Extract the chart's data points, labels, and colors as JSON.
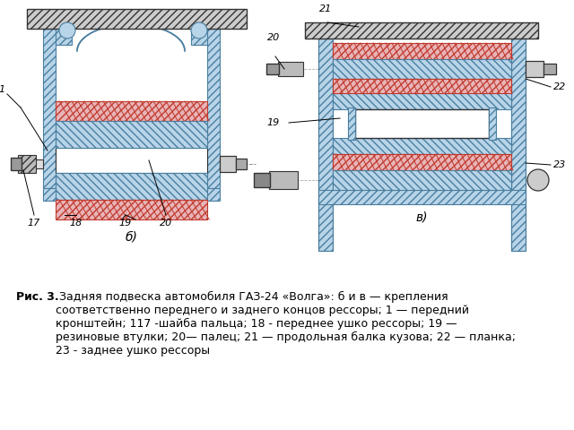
{
  "bg_color": "#ffffff",
  "fig_width": 6.4,
  "fig_height": 4.8,
  "dpi": 100,
  "caption_bold": "Рис. 3.",
  "caption_text": " Задняя подвеска автомобиля ГАЗ-24 «Волга»: б и в — крепления\nсоответственно переднего и заднего концов рессоры; 1 — передний\nкронштейн; 117 -шайба пальца; 18 - переднее ушко рессоры; 19 —\nрезиновые втулки; 20— палец; 21 — продольная балка кузова; 22 — планка;\n23 - заднее ушко рессоры",
  "caption_fontsize": 9.0,
  "label_fontsize": 8.0,
  "rubber_color": "#e8b4b8",
  "rubber_hatch_color": "#c0392b",
  "steel_color": "#b8d4e8",
  "steel_hatch": "////",
  "body_hatch_color": "#555555",
  "body_fill": "#cccccc"
}
